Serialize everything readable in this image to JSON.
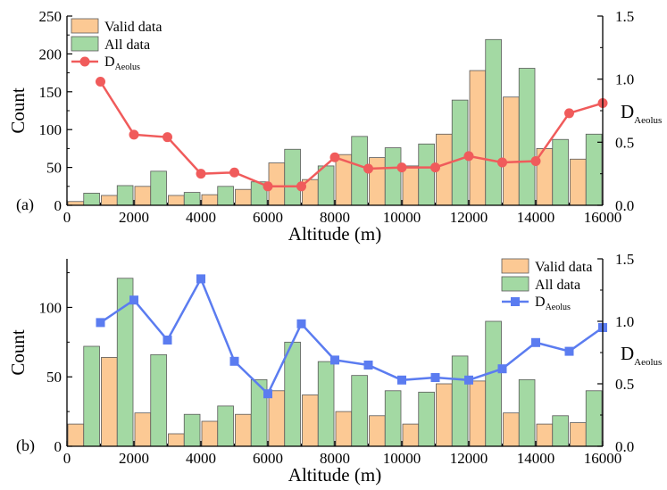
{
  "chart_data": [
    {
      "type": "bar",
      "panel_label": "(a)",
      "xlabel": "Altitude (m)",
      "ylabel": "Count",
      "y2label": {
        "main": "D",
        "sub": "Aeolus"
      },
      "xlim": [
        0,
        16000
      ],
      "ylim": [
        0,
        250
      ],
      "y2lim": [
        0,
        1.5
      ],
      "xticks": [
        "0",
        "2000",
        "4000",
        "6000",
        "8000",
        "10000",
        "12000",
        "14000",
        "16000"
      ],
      "yticks": [
        "0",
        "50",
        "100",
        "150",
        "200",
        "250"
      ],
      "y2ticks": [
        "0.0",
        "0.5",
        "1.0",
        "1.5"
      ],
      "legend_position": "top-left",
      "bin_starts": [
        0,
        1000,
        2000,
        3000,
        4000,
        5000,
        6000,
        7000,
        8000,
        9000,
        10000,
        11000,
        12000,
        13000,
        14000,
        15000
      ],
      "series": [
        {
          "name": "Valid data",
          "kind": "bar",
          "color": "#fcc994",
          "values": [
            5,
            13,
            25,
            13,
            14,
            21,
            56,
            34,
            67,
            63,
            52,
            94,
            178,
            143,
            75,
            61
          ]
        },
        {
          "name": "All data",
          "kind": "bar",
          "color": "#a3d9a3",
          "values": [
            16,
            26,
            45,
            17,
            25,
            31,
            74,
            52,
            91,
            76,
            81,
            139,
            219,
            181,
            87,
            94
          ]
        },
        {
          "name_main": "D",
          "name_sub": "Aeolus",
          "kind": "line",
          "marker": "circle",
          "color": "#f05b5b",
          "x": [
            1000,
            2000,
            3000,
            4000,
            5000,
            6000,
            7000,
            8000,
            9000,
            10000,
            11000,
            12000,
            13000,
            14000,
            15000,
            16000
          ],
          "values": [
            0.98,
            0.56,
            0.54,
            0.25,
            0.26,
            0.15,
            0.15,
            0.38,
            0.29,
            0.3,
            0.3,
            0.39,
            0.34,
            0.35,
            0.73,
            0.81
          ]
        }
      ]
    },
    {
      "type": "bar",
      "panel_label": "(b)",
      "xlabel": "Altitude (m)",
      "ylabel": "Count",
      "y2label": {
        "main": "D",
        "sub": "Aeolus"
      },
      "xlim": [
        0,
        16000
      ],
      "ylim": [
        0,
        135
      ],
      "y2lim": [
        0,
        1.5
      ],
      "xticks": [
        "0",
        "2000",
        "4000",
        "6000",
        "8000",
        "10000",
        "12000",
        "14000",
        "16000"
      ],
      "yticks": [
        "0",
        "50",
        "100"
      ],
      "y2ticks": [
        "0.0",
        "0.5",
        "1.0",
        "1.5"
      ],
      "legend_position": "top-right",
      "bin_starts": [
        0,
        1000,
        2000,
        3000,
        4000,
        5000,
        6000,
        7000,
        8000,
        9000,
        10000,
        11000,
        12000,
        13000,
        14000,
        15000
      ],
      "series": [
        {
          "name": "Valid data",
          "kind": "bar",
          "color": "#fcc994",
          "values": [
            16,
            64,
            24,
            9,
            18,
            23,
            40,
            37,
            25,
            22,
            16,
            45,
            47,
            24,
            16,
            17
          ]
        },
        {
          "name": "All data",
          "kind": "bar",
          "color": "#a3d9a3",
          "values": [
            72,
            121,
            66,
            23,
            29,
            48,
            75,
            61,
            51,
            40,
            39,
            65,
            90,
            48,
            22,
            40
          ]
        },
        {
          "name_main": "D",
          "name_sub": "Aeolus",
          "kind": "line",
          "marker": "square",
          "color": "#5b7cf0",
          "x": [
            1000,
            2000,
            3000,
            4000,
            5000,
            6000,
            7000,
            8000,
            9000,
            10000,
            11000,
            12000,
            13000,
            14000,
            15000,
            16000
          ],
          "values": [
            0.99,
            1.17,
            0.85,
            1.34,
            0.68,
            0.42,
            0.98,
            0.69,
            0.65,
            0.53,
            0.55,
            0.53,
            0.62,
            0.83,
            0.76,
            0.95
          ]
        }
      ]
    }
  ]
}
